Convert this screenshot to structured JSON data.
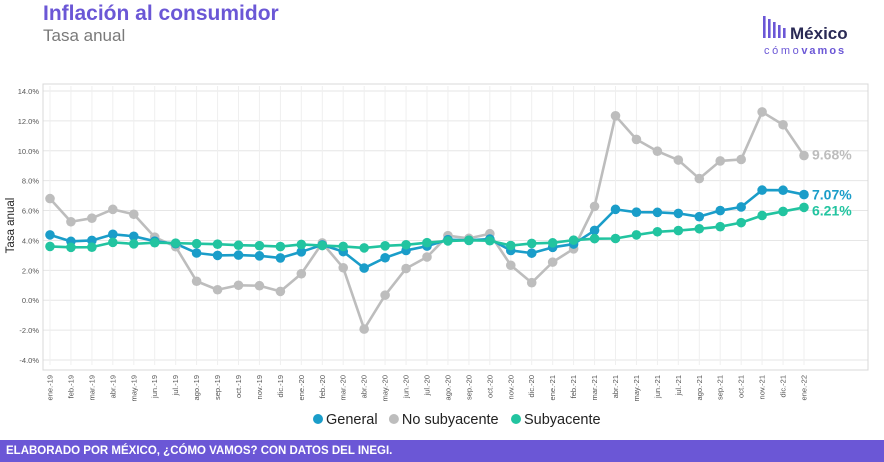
{
  "header": {
    "title": "Inflación al consumidor",
    "subtitle": "Tasa anual"
  },
  "logo": {
    "top_text": "México",
    "bottom_light": "cómo",
    "bottom_bold": "vamos"
  },
  "footer": {
    "text": "ELABORADO POR MÉXICO, ¿CÓMO VAMOS? CON DATOS DEL INEGI."
  },
  "colors": {
    "brand": "#6b57d6",
    "general": "#1a9dc9",
    "no_subyacente": "#bdbdbd",
    "subyacente": "#22c4a0",
    "grid": "#e6e6e6"
  },
  "chart_data": {
    "type": "line",
    "title": "",
    "xlabel": "",
    "ylabel": "Tasa anual",
    "ylim": [
      -4,
      14
    ],
    "yticks": [
      "-4.0%",
      "-2.0%",
      "0.0%",
      "2.0%",
      "4.0%",
      "6.0%",
      "8.0%",
      "10.0%",
      "12.0%",
      "14.0%"
    ],
    "grid": true,
    "legend_position": "bottom",
    "categories": [
      "ene.-19",
      "feb.-19",
      "mar.-19",
      "abr.-19",
      "may.-19",
      "jun.-19",
      "jul.-19",
      "ago.-19",
      "sep.-19",
      "oct.-19",
      "nov.-19",
      "dic.-19",
      "ene.-20",
      "feb.-20",
      "mar.-20",
      "abr.-20",
      "may.-20",
      "jun.-20",
      "jul.-20",
      "ago.-20",
      "sep.-20",
      "oct.-20",
      "nov.-20",
      "dic.-20",
      "ene.-21",
      "feb.-21",
      "mar.-21",
      "abr.-21",
      "may.-21",
      "jun.-21",
      "jul.-21",
      "ago.-21",
      "sep.-21",
      "oct.-21",
      "nov.-21",
      "dic.-21",
      "ene.-22"
    ],
    "series": [
      {
        "name": "General",
        "color": "#1a9dc9",
        "values": [
          4.37,
          3.94,
          4.0,
          4.41,
          4.28,
          3.95,
          3.78,
          3.16,
          3.0,
          3.02,
          2.97,
          2.83,
          3.24,
          3.7,
          3.25,
          2.15,
          2.84,
          3.33,
          3.62,
          4.05,
          4.01,
          4.09,
          3.33,
          3.15,
          3.54,
          3.76,
          4.67,
          6.08,
          5.89,
          5.88,
          5.81,
          5.59,
          6.0,
          6.24,
          7.37,
          7.36,
          7.07
        ],
        "end_label": "7.07%"
      },
      {
        "name": "No subyacente",
        "color": "#bdbdbd",
        "values": [
          6.8,
          5.25,
          5.49,
          6.08,
          5.75,
          4.22,
          3.58,
          1.27,
          0.7,
          1.0,
          0.97,
          0.59,
          1.77,
          3.83,
          2.17,
          -1.93,
          0.34,
          2.12,
          2.89,
          4.32,
          4.14,
          4.45,
          2.34,
          1.17,
          2.55,
          3.44,
          6.28,
          12.34,
          10.76,
          9.97,
          9.38,
          8.14,
          9.32,
          9.42,
          12.6,
          11.74,
          9.68
        ],
        "end_label": "9.68%"
      },
      {
        "name": "Subyacente",
        "color": "#22c4a0",
        "values": [
          3.6,
          3.54,
          3.55,
          3.87,
          3.77,
          3.85,
          3.82,
          3.78,
          3.75,
          3.68,
          3.65,
          3.59,
          3.73,
          3.66,
          3.6,
          3.5,
          3.64,
          3.71,
          3.85,
          3.97,
          4.01,
          3.98,
          3.66,
          3.8,
          3.84,
          4.02,
          4.12,
          4.13,
          4.37,
          4.58,
          4.66,
          4.78,
          4.92,
          5.19,
          5.67,
          5.94,
          6.21
        ],
        "end_label": "6.21%"
      }
    ]
  }
}
